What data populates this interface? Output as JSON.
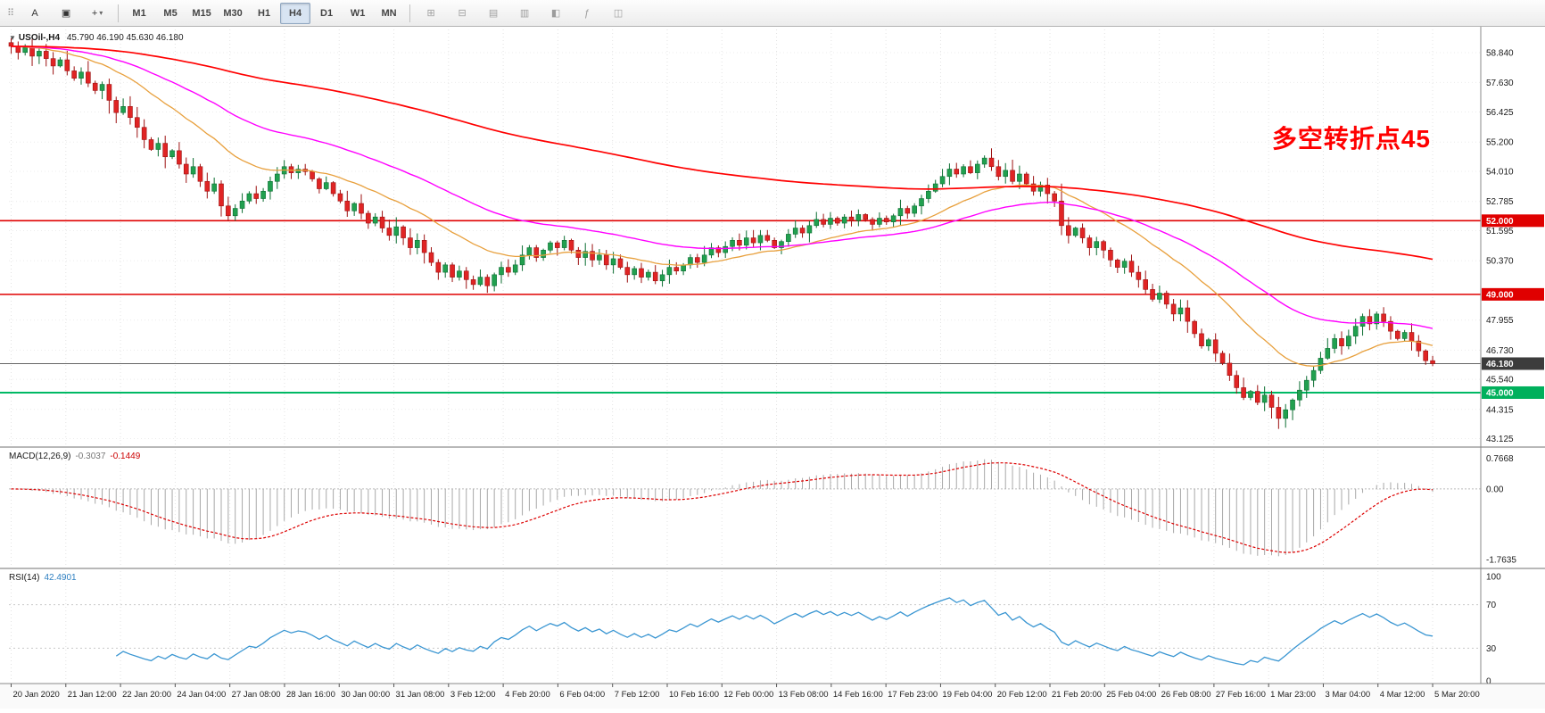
{
  "window": {
    "symbol_tf": "USOil-,H4",
    "ohlc_text": "45.790 46.190 45.630 46.180"
  },
  "toolbar": {
    "tools": [
      {
        "glyph": "A",
        "name": "text-annotation-tool"
      },
      {
        "glyph": "▣",
        "name": "shapes-tool"
      },
      {
        "glyph": "+",
        "name": "crosshair-tool",
        "caret": "▾"
      }
    ],
    "timeframes": [
      {
        "label": "M1",
        "active": false
      },
      {
        "label": "M5",
        "active": false
      },
      {
        "label": "M15",
        "active": false
      },
      {
        "label": "M30",
        "active": false
      },
      {
        "label": "H1",
        "active": false
      },
      {
        "label": "H4",
        "active": true
      },
      {
        "label": "D1",
        "active": false
      },
      {
        "label": "W1",
        "active": false
      },
      {
        "label": "MN",
        "active": false
      }
    ],
    "right_icons": [
      "⊞",
      "⊟",
      "▤",
      "▥",
      "◧",
      "ƒ",
      "◫"
    ]
  },
  "annotation": {
    "text": "多空转折点45",
    "color": "#ff0000"
  },
  "price_scale": {
    "ticks": [
      "58.840",
      "57.630",
      "56.425",
      "55.200",
      "54.010",
      "52.785",
      "51.595",
      "50.370",
      "47.955",
      "46.730",
      "45.540",
      "44.315",
      "43.125"
    ],
    "tags": [
      {
        "text": "52.000",
        "price": 52.0,
        "bg": "#e00000",
        "fg": "#ffffff"
      },
      {
        "text": "49.000",
        "price": 49.0,
        "bg": "#e00000",
        "fg": "#ffffff"
      },
      {
        "text": "46.180",
        "price": 46.18,
        "bg": "#3c3c3c",
        "fg": "#ffffff"
      },
      {
        "text": "45.000",
        "price": 45.0,
        "bg": "#00b05c",
        "fg": "#ffffff"
      }
    ]
  },
  "time_axis": {
    "labels": [
      "20 Jan 2020",
      "21 Jan 12:00",
      "22 Jan 20:00",
      "24 Jan 04:00",
      "27 Jan 08:00",
      "28 Jan 16:00",
      "30 Jan 00:00",
      "31 Jan 08:00",
      "3 Feb 12:00",
      "4 Feb 20:00",
      "6 Feb 04:00",
      "7 Feb 12:00",
      "10 Feb 16:00",
      "12 Feb 00:00",
      "13 Feb 08:00",
      "14 Feb 16:00",
      "17 Feb 23:00",
      "19 Feb 04:00",
      "20 Feb 12:00",
      "21 Feb 20:00",
      "25 Feb 04:00",
      "26 Feb 08:00",
      "27 Feb 16:00",
      "1 Mar 23:00",
      "3 Mar 04:00",
      "4 Mar 12:00",
      "5 Mar 20:00"
    ]
  },
  "panes": {
    "macd": {
      "header": "MACD(12,26,9)",
      "value_main": "-0.3037",
      "value_signal": "-0.1449",
      "scale": [
        "0.7668",
        "0.00",
        "-1.7635"
      ]
    },
    "rsi": {
      "header": "RSI(14)",
      "value": "42.4901",
      "scale": [
        "100",
        "70",
        "30",
        "0"
      ]
    }
  },
  "chart_data": {
    "type": "candlestick",
    "symbol": "USOil-",
    "timeframe": "H4",
    "title": "USOil-,H4 45.790 46.190 45.630 46.180",
    "current_bar": {
      "open": 45.79,
      "high": 46.19,
      "low": 45.63,
      "close": 46.18
    },
    "y_range": [
      43.0,
      59.75
    ],
    "first_open": 59.25,
    "closes": [
      59.1,
      58.85,
      59.05,
      58.7,
      58.9,
      58.6,
      58.3,
      58.55,
      58.1,
      57.8,
      58.05,
      57.6,
      57.3,
      57.55,
      56.9,
      56.4,
      56.65,
      56.2,
      55.8,
      55.3,
      54.9,
      55.15,
      54.6,
      54.85,
      54.3,
      53.9,
      54.2,
      53.6,
      53.2,
      53.5,
      52.6,
      52.2,
      52.5,
      52.8,
      53.1,
      52.9,
      53.2,
      53.6,
      53.9,
      54.2,
      53.95,
      54.1,
      54.0,
      53.7,
      53.3,
      53.55,
      53.1,
      52.8,
      52.4,
      52.7,
      52.3,
      51.9,
      52.15,
      51.7,
      51.4,
      51.75,
      51.3,
      50.9,
      51.2,
      50.7,
      50.3,
      49.9,
      50.2,
      49.7,
      49.95,
      49.6,
      49.4,
      49.7,
      49.35,
      49.8,
      50.1,
      49.9,
      50.2,
      50.6,
      50.9,
      50.5,
      50.8,
      51.1,
      50.9,
      51.2,
      50.8,
      50.5,
      50.75,
      50.4,
      50.6,
      50.2,
      50.45,
      50.1,
      49.8,
      50.05,
      49.7,
      49.9,
      49.55,
      49.8,
      50.1,
      49.95,
      50.2,
      50.5,
      50.3,
      50.6,
      50.9,
      50.7,
      50.95,
      51.2,
      51.0,
      51.3,
      51.1,
      51.4,
      51.2,
      50.9,
      51.15,
      51.45,
      51.7,
      51.5,
      51.8,
      52.05,
      51.85,
      52.1,
      51.9,
      52.15,
      52.0,
      52.25,
      52.05,
      51.85,
      52.1,
      51.95,
      52.2,
      52.5,
      52.3,
      52.6,
      52.9,
      53.2,
      53.5,
      53.8,
      54.1,
      53.9,
      54.2,
      53.95,
      54.3,
      54.55,
      54.2,
      53.8,
      54.05,
      53.6,
      53.9,
      53.5,
      53.2,
      53.45,
      53.1,
      52.8,
      51.8,
      51.4,
      51.7,
      51.3,
      50.9,
      51.15,
      50.8,
      50.4,
      50.1,
      50.35,
      49.9,
      49.6,
      49.2,
      48.8,
      49.05,
      48.6,
      48.2,
      48.45,
      47.9,
      47.4,
      46.9,
      47.15,
      46.6,
      46.2,
      45.7,
      45.2,
      44.8,
      45.05,
      44.6,
      44.9,
      44.4,
      43.95,
      44.3,
      44.7,
      45.1,
      45.5,
      45.9,
      46.4,
      46.8,
      47.2,
      46.9,
      47.3,
      47.7,
      48.1,
      47.8,
      48.2,
      47.9,
      47.5,
      47.2,
      47.45,
      47.1,
      46.7,
      46.3,
      46.18
    ],
    "hlines": [
      {
        "price": 52.0,
        "color": "#e00000",
        "width": 1.6
      },
      {
        "price": 49.0,
        "color": "#e00000",
        "width": 1.6
      },
      {
        "price": 45.0,
        "color": "#00b964",
        "width": 2.0
      },
      {
        "price": 46.18,
        "color": "#666666",
        "width": 1.0
      }
    ],
    "moving_averages": [
      {
        "period": 21,
        "color": "#e8a03d",
        "width": 1.3
      },
      {
        "period": 48,
        "color": "#ff00ff",
        "width": 1.4
      },
      {
        "period": 160,
        "color": "#ff0000",
        "width": 1.7
      }
    ],
    "indicators": {
      "macd": {
        "fast": 12,
        "slow": 26,
        "signal": 9,
        "hist_color": "#a8a8a8",
        "signal_color": "#dd0000"
      },
      "rsi": {
        "period": 14,
        "color": "#3a96d2",
        "levels": [
          70,
          30
        ]
      }
    },
    "candle_colors": {
      "up_fill": "#21a04f",
      "up_stroke": "#0c6e32",
      "down_fill": "#e02424",
      "down_stroke": "#9c1111"
    }
  }
}
